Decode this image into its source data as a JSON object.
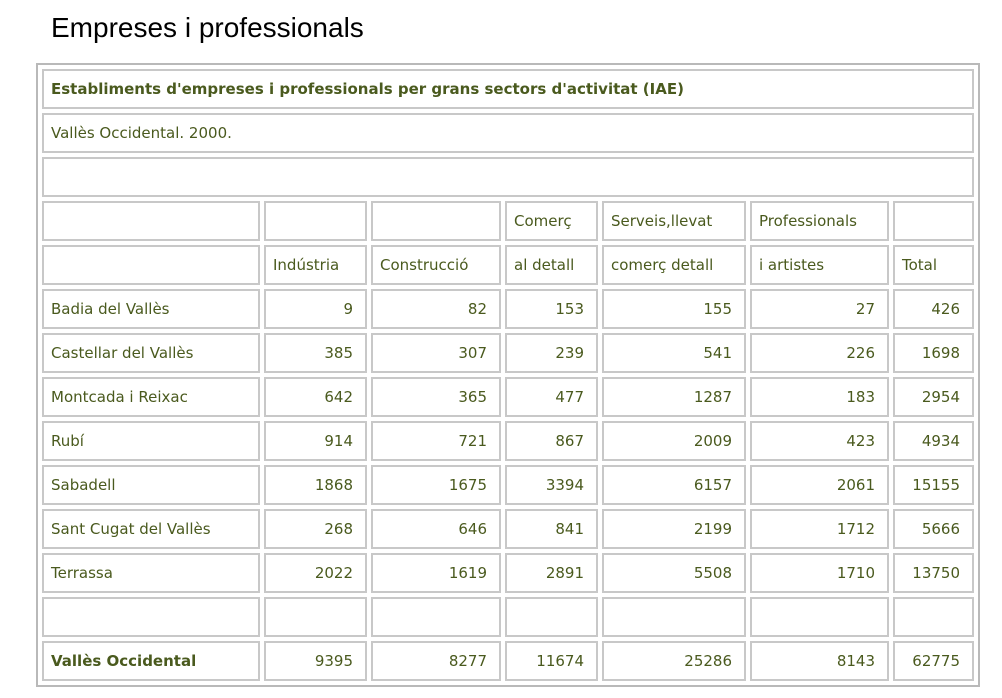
{
  "page_title": "Empreses i professionals",
  "table": {
    "caption": "Establiments d'empreses i professionals per grans sectors d'activitat (IAE)",
    "subtitle": "Vallès Occidental. 2000.",
    "header_row1": [
      "",
      "",
      "",
      "Comerç",
      "Serveis,llevat",
      "Professionals",
      ""
    ],
    "header_row2": [
      "",
      "Indústria",
      "Construcció",
      "al detall",
      "comerç detall",
      "i artistes",
      "Total"
    ],
    "rows": [
      {
        "name": "Badia del Vallès",
        "values": [
          "9",
          "82",
          "153",
          "155",
          "27",
          "426"
        ]
      },
      {
        "name": "Castellar del Vallès",
        "values": [
          "385",
          "307",
          "239",
          "541",
          "226",
          "1698"
        ]
      },
      {
        "name": "Montcada i Reixac",
        "values": [
          "642",
          "365",
          "477",
          "1287",
          "183",
          "2954"
        ]
      },
      {
        "name": "Rubí",
        "values": [
          "914",
          "721",
          "867",
          "2009",
          "423",
          "4934"
        ]
      },
      {
        "name": "Sabadell",
        "values": [
          "1868",
          "1675",
          "3394",
          "6157",
          "2061",
          "15155"
        ]
      },
      {
        "name": "Sant Cugat del Vallès",
        "values": [
          "268",
          "646",
          "841",
          "2199",
          "1712",
          "5666"
        ]
      },
      {
        "name": "Terrassa",
        "values": [
          "2022",
          "1619",
          "2891",
          "5508",
          "1710",
          "13750"
        ]
      }
    ],
    "total": {
      "name": "Vallès Occidental",
      "values": [
        "9395",
        "8277",
        "11674",
        "25286",
        "8143",
        "62775"
      ]
    }
  }
}
